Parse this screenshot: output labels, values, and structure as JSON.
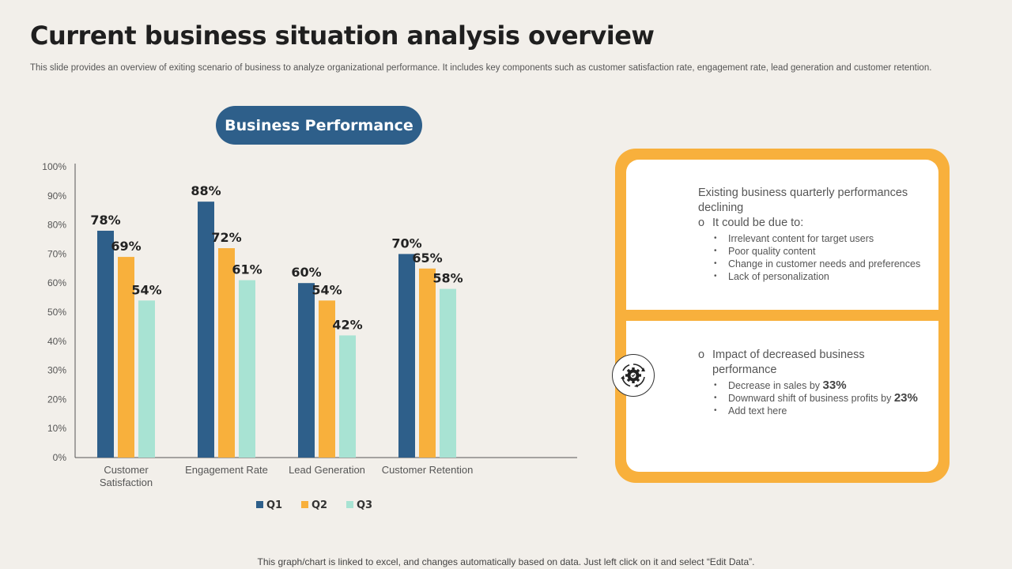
{
  "header": {
    "title": "Current business situation analysis overview",
    "subtitle": "This slide provides an overview of exiting scenario of business to analyze organizational performance. It includes key components such as customer satisfaction rate, engagement rate, lead generation and customer retention."
  },
  "chart_title": "Business Performance",
  "chart_data": {
    "type": "bar",
    "categories": [
      "Customer Satisfaction",
      "Engagement Rate",
      "Lead Generation",
      "Customer Retention"
    ],
    "series": [
      {
        "name": "Q1",
        "values": [
          78,
          88,
          60,
          70
        ],
        "labels": [
          "78%",
          "88%",
          "60%",
          "70%"
        ],
        "color": "#2e5f8a"
      },
      {
        "name": "Q2",
        "values": [
          69,
          72,
          54,
          65
        ],
        "labels": [
          "69%",
          "72%",
          "54%",
          "65%"
        ],
        "color": "#f8b03c"
      },
      {
        "name": "Q3",
        "values": [
          54,
          61,
          42,
          58
        ],
        "labels": [
          "54%",
          "61%",
          "42%",
          "58%"
        ],
        "color": "#a8e3d3"
      }
    ],
    "y_ticks": [
      "0%",
      "10%",
      "20%",
      "30%",
      "40%",
      "50%",
      "60%",
      "70%",
      "80%",
      "90%",
      "100%"
    ],
    "ylim": [
      0,
      100
    ],
    "legend_position": "bottom"
  },
  "info_top": {
    "lead": "Existing business quarterly performances declining",
    "marker": "o",
    "point": "It could be due to:",
    "bullet_char": "•",
    "bullets": [
      "Irrelevant  content for target users",
      "Poor quality content",
      "Change  in customer needs and preferences",
      "Lack of personalization"
    ]
  },
  "info_bottom": {
    "marker": "o",
    "point": "Impact of decreased business performance",
    "bullet_char": "•",
    "b1_text": "Decrease in sales by",
    "b1_value": "33%",
    "b2_text": "Downward  shift of business profits  by",
    "b2_value": "23%",
    "b3_text": "Add text here"
  },
  "icon": "gear-settings-icon",
  "footer": "This graph/chart is linked to excel,  and changes automatically based on data. Just left click on it and select “Edit Data”."
}
